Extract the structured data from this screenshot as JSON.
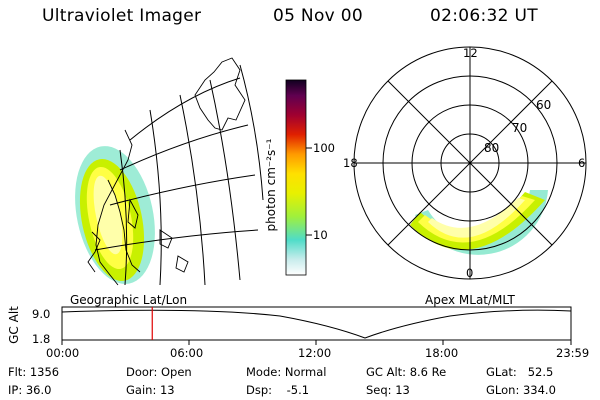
{
  "header": {
    "instrument": "Ultraviolet Imager",
    "date": "05 Nov 00",
    "time": "02:06:32 UT"
  },
  "map_panel": {
    "caption": "Geographic Lat/Lon"
  },
  "colorbar": {
    "label": "photon cm⁻²s⁻¹",
    "ticks": [
      "100",
      "10"
    ]
  },
  "polar_panel": {
    "caption": "Apex MLat/MLT",
    "mlt_labels": {
      "top": "12",
      "left": "18",
      "right": "6",
      "bottom": "0"
    },
    "lat_labels": [
      "60",
      "70",
      "80"
    ]
  },
  "timeline": {
    "axis_label": "GC Alt",
    "y_ticks": [
      "9.0",
      "1.8"
    ],
    "x_ticks": [
      "00:00",
      "06:00",
      "12:00",
      "18:00",
      "23:59"
    ],
    "current_fraction": 0.1773
  },
  "status": {
    "flt": "Flt: 1356",
    "ip": "IP: 36.0",
    "door": "Door: Open",
    "gain": "Gain: 13",
    "mode": "Mode: Normal",
    "dsp": "Dsp:    -5.1",
    "gc_alt": "GC Alt: 8.6 Re",
    "seq": "Seq: 13",
    "glat": "GLat:   52.5",
    "glon": "GLon: 334.0"
  },
  "colors": {
    "aurora_core": "#ffff66",
    "aurora_mid": "#c8f000",
    "aurora_edge": "#4fdcb4",
    "marker": "#e00000"
  }
}
